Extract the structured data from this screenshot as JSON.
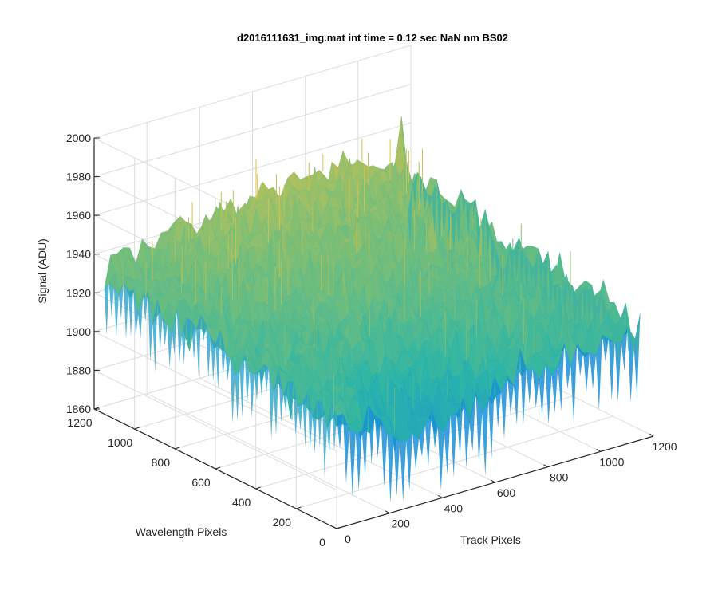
{
  "chart_data": {
    "type": "surface",
    "title": "d2016111631_img.mat int time = 0.12 sec  NaN nm BS02",
    "xlabel": "Track Pixels",
    "ylabel": "Wavelength Pixels",
    "zlabel": "Signal (ADU)",
    "xlim": [
      0,
      1200
    ],
    "ylim": [
      0,
      1200
    ],
    "zlim": [
      1860,
      2000
    ],
    "x_ticks": [
      "0",
      "200",
      "400",
      "600",
      "800",
      "1000",
      "1200"
    ],
    "y_ticks": [
      "0",
      "200",
      "400",
      "600",
      "800",
      "1000",
      "1200"
    ],
    "z_ticks": [
      "1860",
      "1880",
      "1900",
      "1920",
      "1940",
      "1960",
      "1980",
      "2000"
    ],
    "grid": true,
    "colormap": "parula",
    "surface_summary": {
      "data_extent_x": [
        0,
        1150
      ],
      "data_extent_y": [
        0,
        1150
      ],
      "mean_level": 1925,
      "peak_region_level": 1965,
      "low_spikes_to": 1870,
      "high_spikes_to": 1985,
      "profile_x": [
        0,
        200,
        400,
        600,
        800,
        1000,
        1150
      ],
      "profile_y": [
        0,
        200,
        400,
        600,
        800,
        1000,
        1150
      ]
    },
    "colors": {
      "low": "#1a8fd6",
      "mid": "#2bb5a8",
      "high": "#d9c24a",
      "axis": "#262626",
      "grid": "#dcdcdc"
    }
  }
}
